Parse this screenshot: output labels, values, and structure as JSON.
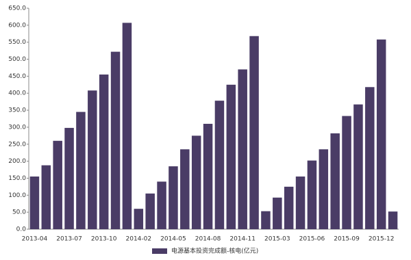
{
  "chart_data": {
    "type": "bar",
    "legend": "电源基本投资完成额-核电(亿元)",
    "color": "#4a3c66",
    "categories": [
      "2013-04",
      null,
      null,
      "2013-07",
      null,
      null,
      "2013-10",
      null,
      null,
      "2014-02",
      null,
      null,
      "2014-05",
      null,
      null,
      "2014-08",
      null,
      null,
      "2014-11",
      null,
      null,
      "2015-03",
      null,
      null,
      "2015-06",
      null,
      null,
      "2015-09",
      null,
      null,
      "2015-12",
      null
    ],
    "values": [
      155,
      188,
      260,
      298,
      345,
      408,
      455,
      522,
      607,
      60,
      105,
      140,
      185,
      235,
      275,
      310,
      378,
      425,
      470,
      568,
      53,
      93,
      125,
      155,
      202,
      235,
      282,
      333,
      367,
      418,
      558,
      52
    ],
    "ylim": [
      0,
      650
    ],
    "yticks": [
      {
        "value": 0,
        "label": "0.0"
      },
      {
        "value": 50,
        "label": "50.0"
      },
      {
        "value": 100,
        "label": "100.0"
      },
      {
        "value": 150,
        "label": "150.0"
      },
      {
        "value": 200,
        "label": "200.0"
      },
      {
        "value": 250,
        "label": "250.0"
      },
      {
        "value": 300,
        "label": "300.0"
      },
      {
        "value": 350,
        "label": "350.0"
      },
      {
        "value": 400,
        "label": "400.0"
      },
      {
        "value": 450,
        "label": "450.0"
      },
      {
        "value": 500,
        "label": "500.0"
      },
      {
        "value": 550,
        "label": "550.0"
      },
      {
        "value": 600,
        "label": "600.0"
      },
      {
        "value": 650,
        "label": "650.0"
      }
    ]
  }
}
